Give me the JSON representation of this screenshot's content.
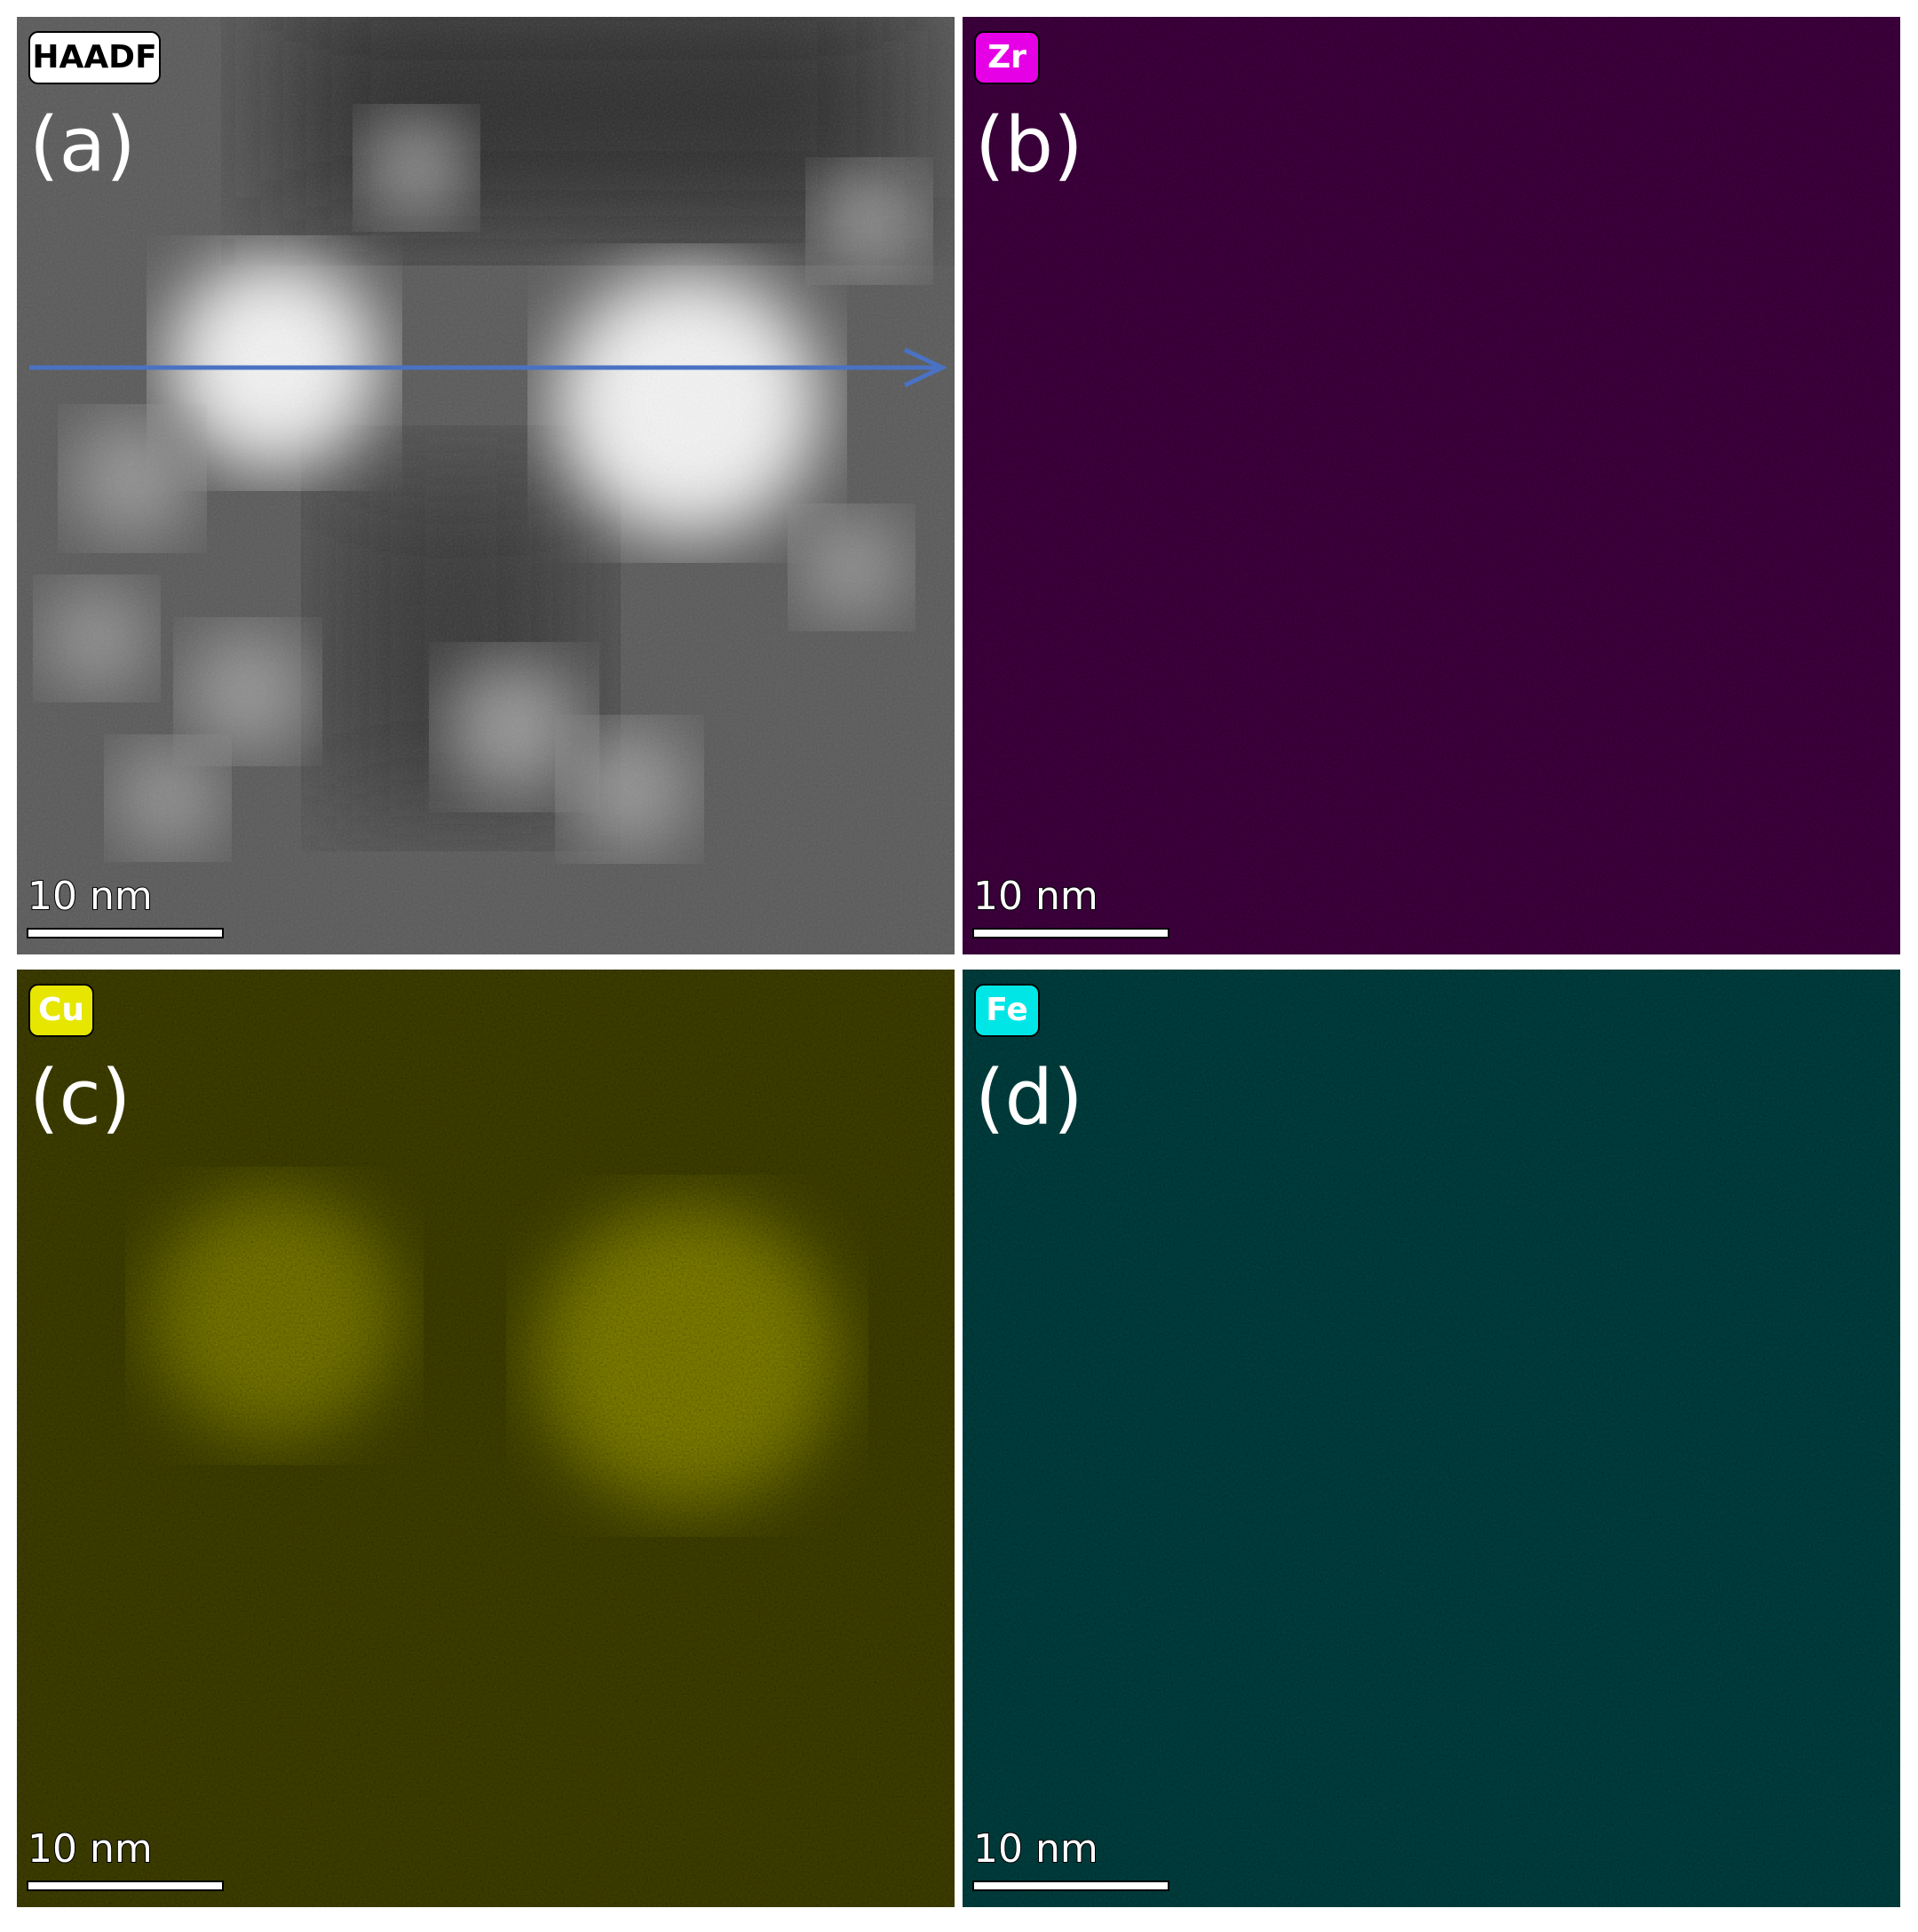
{
  "panels": [
    {
      "tag": "HAADF",
      "label": "(a)",
      "scale_bar": "10 nm",
      "color": "#ffffff"
    },
    {
      "tag": "Zr",
      "label": "(b)",
      "scale_bar": "10 nm",
      "color": "#e600e6"
    },
    {
      "tag": "Cu",
      "label": "(c)",
      "scale_bar": "10 nm",
      "color": "#e6e600"
    },
    {
      "tag": "Fe",
      "label": "(d)",
      "scale_bar": "10 nm",
      "color": "#00e6e6"
    }
  ]
}
